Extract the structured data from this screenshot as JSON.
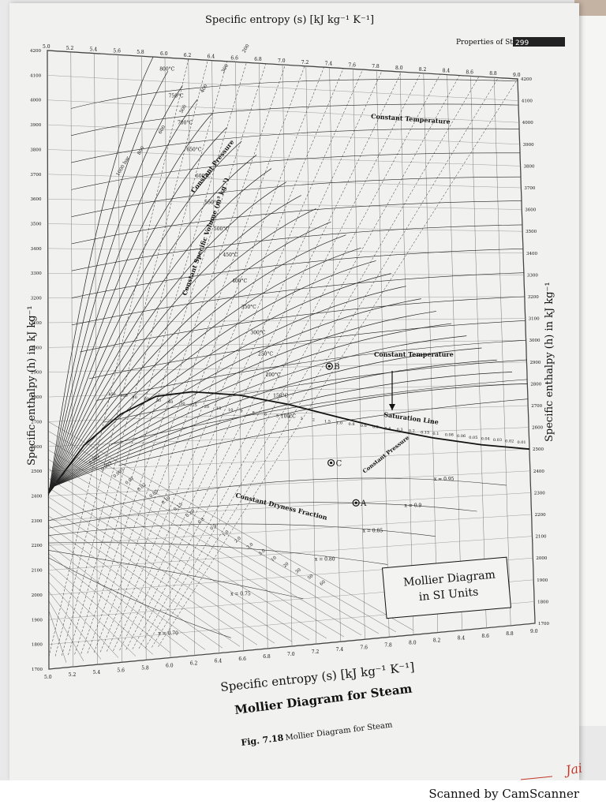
{
  "page": {
    "header": "Properties of Steam",
    "page_number": "299",
    "figure_caption_num": "Fig. 7.18",
    "figure_caption_text": "Mollier Diagram for Steam",
    "scanner_text": "Scanned by CamScanner",
    "signature": "Jai"
  },
  "chart_data": {
    "type": "line",
    "xlabel": "Specific entropy (s) [kJ kg⁻¹ K⁻¹]",
    "ylabel": "Specific enthalpy (h) in kJ kg⁻¹",
    "subtitle": "Mollier Diagram for Steam",
    "box_title_line1": "Mollier Diagram",
    "box_title_line2": "in SI Units",
    "xlim": [
      5.0,
      9.0
    ],
    "ylim": [
      1700,
      4200
    ],
    "x_ticks": [
      "5.0",
      "5.2",
      "5.4",
      "5.6",
      "5.8",
      "6.0",
      "6.2",
      "6.4",
      "6.6",
      "6.8",
      "7.0",
      "7.2",
      "7.4",
      "7.6",
      "7.8",
      "8.0",
      "8.2",
      "8.4",
      "8.6",
      "8.8",
      "9.0"
    ],
    "y_ticks": [
      "1700",
      "1800",
      "1900",
      "2000",
      "2100",
      "2200",
      "2300",
      "2400",
      "2500",
      "2600",
      "2700",
      "2800",
      "2900",
      "3000",
      "3100",
      "3200",
      "3300",
      "3400",
      "3500",
      "3600",
      "3700",
      "3800",
      "3900",
      "4000",
      "4100",
      "4200"
    ],
    "annotations": {
      "constant_temperature": "Constant Temperature",
      "constant_pressure": "Constant Pressure",
      "constant_specific_volume": "Constant Specific Volume (m³ kg⁻¹)",
      "constant_dryness": "Constant Dryness Fraction",
      "saturation_line": "Saturation Line",
      "point_a": "A",
      "point_b": "B",
      "point_c": "C"
    },
    "temperature_lines": [
      {
        "label": "800°C",
        "h": 4150
      },
      {
        "label": "750°C",
        "h": 4040
      },
      {
        "label": "700°C",
        "h": 3930
      },
      {
        "label": "650°C",
        "h": 3820
      },
      {
        "label": "600°C",
        "h": 3710
      },
      {
        "label": "550°C",
        "h": 3600
      },
      {
        "label": "500°C",
        "h": 3490
      },
      {
        "label": "450°C",
        "h": 3380
      },
      {
        "label": "400°C",
        "h": 3270
      },
      {
        "label": "350°C",
        "h": 3160
      },
      {
        "label": "300°C",
        "h": 3050
      },
      {
        "label": "250°C",
        "h": 2960
      },
      {
        "label": "200°C",
        "h": 2870
      },
      {
        "label": "150°C",
        "h": 2780
      },
      {
        "label": "100°C",
        "h": 2690
      }
    ],
    "pressure_labels": [
      "1000 bar",
      "800",
      "600",
      "500",
      "400",
      "300",
      "200",
      "150",
      "100",
      "80",
      "60",
      "50",
      "40",
      "30",
      "25",
      "20",
      "15",
      "10",
      "9",
      "8",
      "6",
      "5",
      "4",
      "3",
      "2",
      "1.5",
      "1.0",
      "0.8",
      "0.6",
      "0.5",
      "0.4",
      "0.3",
      "0.2",
      "0.15",
      "0.1",
      "0.08",
      "0.06",
      "0.05",
      "0.04",
      "0.03",
      "0.02",
      "0.01"
    ],
    "dryness_lines": [
      {
        "label": "x = 0.95",
        "s": 8.2,
        "h": 2380
      },
      {
        "label": "x = 0.9",
        "s": 7.95,
        "h": 2270
      },
      {
        "label": "x = 0.85",
        "s": 7.6,
        "h": 2170
      },
      {
        "label": "x = 0.80",
        "s": 7.2,
        "h": 2060
      },
      {
        "label": "x = 0.75",
        "s": 6.5,
        "h": 1940
      },
      {
        "label": "x = 0.70",
        "s": 5.9,
        "h": 1800
      }
    ],
    "volume_labels": [
      "0.002",
      "0.003",
      "0.005",
      "0.01",
      "0.02",
      "0.05",
      "0.10",
      "0.15",
      "0.20",
      "0.3",
      "0.5",
      "1.0",
      "2.0",
      "3.0",
      "5.0",
      "10",
      "20",
      "30",
      "50",
      "60"
    ],
    "points": [
      {
        "name": "B",
        "s": 7.35,
        "h": 2900
      },
      {
        "name": "C",
        "s": 7.35,
        "h": 2480
      },
      {
        "name": "A",
        "s": 7.55,
        "h": 2300
      }
    ]
  }
}
